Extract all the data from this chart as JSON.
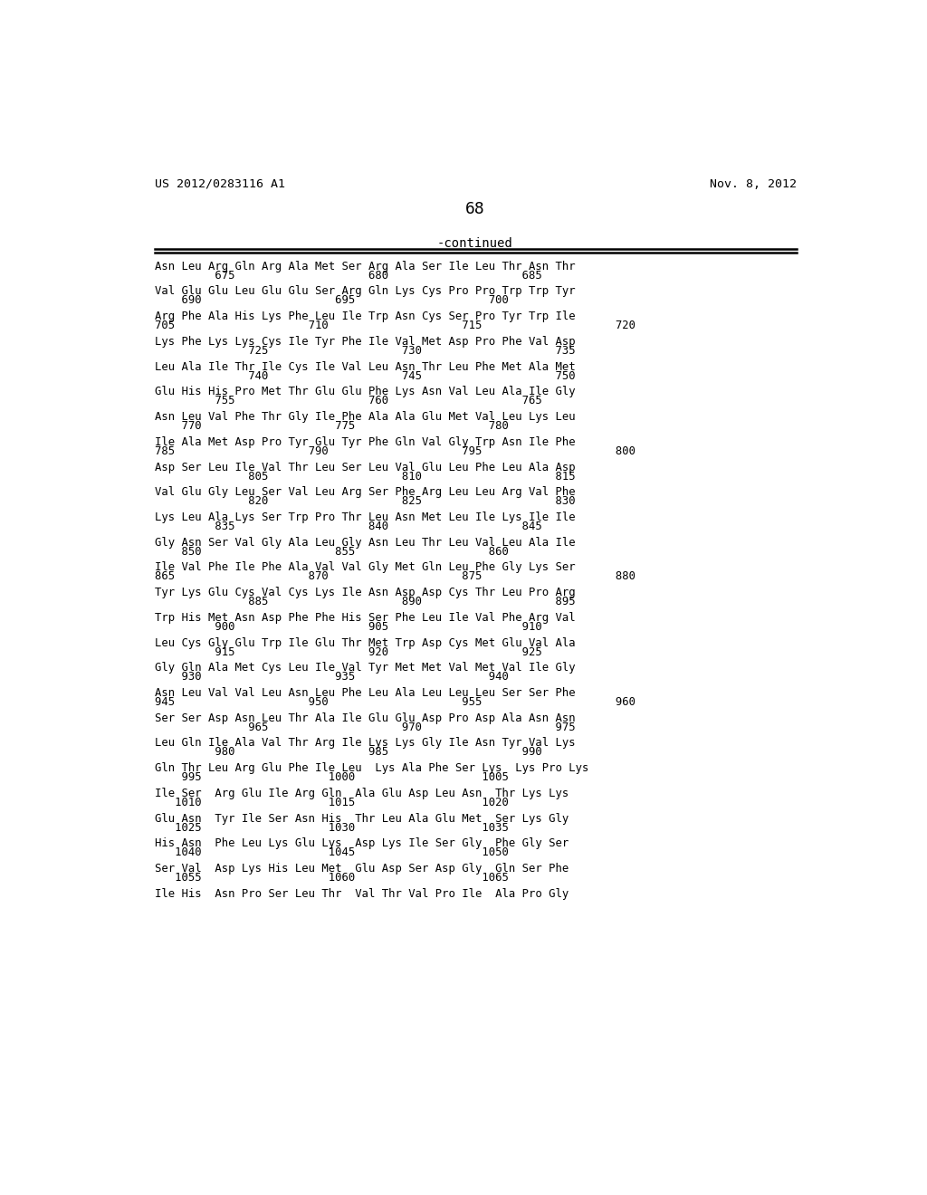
{
  "header_left": "US 2012/0283116 A1",
  "header_right": "Nov. 8, 2012",
  "page_number": "68",
  "continued_label": "-continued",
  "background_color": "#ffffff",
  "text_color": "#000000",
  "seq_lines": [
    [
      "Asn Leu Arg Gln Arg Ala Met Ser Arg Ala Ser Ile Leu Thr Asn Thr",
      "         675                    680                    685"
    ],
    [
      "Val Glu Glu Leu Glu Glu Ser Arg Gln Lys Cys Pro Pro Trp Trp Tyr",
      "    690                    695                    700"
    ],
    [
      "Arg Phe Ala His Lys Phe Leu Ile Trp Asn Cys Ser Pro Tyr Trp Ile",
      "705                    710                    715                    720"
    ],
    [
      "Lys Phe Lys Lys Cys Ile Tyr Phe Ile Val Met Asp Pro Phe Val Asp",
      "              725                    730                    735"
    ],
    [
      "Leu Ala Ile Thr Ile Cys Ile Val Leu Asn Thr Leu Phe Met Ala Met",
      "              740                    745                    750"
    ],
    [
      "Glu His His Pro Met Thr Glu Glu Phe Lys Asn Val Leu Ala Ile Gly",
      "         755                    760                    765"
    ],
    [
      "Asn Leu Val Phe Thr Gly Ile Phe Ala Ala Glu Met Val Leu Lys Leu",
      "    770                    775                    780"
    ],
    [
      "Ile Ala Met Asp Pro Tyr Glu Tyr Phe Gln Val Gly Trp Asn Ile Phe",
      "785                    790                    795                    800"
    ],
    [
      "Asp Ser Leu Ile Val Thr Leu Ser Leu Val Glu Leu Phe Leu Ala Asp",
      "              805                    810                    815"
    ],
    [
      "Val Glu Gly Leu Ser Val Leu Arg Ser Phe Arg Leu Leu Arg Val Phe",
      "              820                    825                    830"
    ],
    [
      "Lys Leu Ala Lys Ser Trp Pro Thr Leu Asn Met Leu Ile Lys Ile Ile",
      "         835                    840                    845"
    ],
    [
      "Gly Asn Ser Val Gly Ala Leu Gly Asn Leu Thr Leu Val Leu Ala Ile",
      "    850                    855                    860"
    ],
    [
      "Ile Val Phe Ile Phe Ala Val Val Gly Met Gln Leu Phe Gly Lys Ser",
      "865                    870                    875                    880"
    ],
    [
      "Tyr Lys Glu Cys Val Cys Lys Ile Asn Asp Asp Cys Thr Leu Pro Arg",
      "              885                    890                    895"
    ],
    [
      "Trp His Met Asn Asp Phe Phe His Ser Phe Leu Ile Val Phe Arg Val",
      "         900                    905                    910"
    ],
    [
      "Leu Cys Gly Glu Trp Ile Glu Thr Met Trp Asp Cys Met Glu Val Ala",
      "         915                    920                    925"
    ],
    [
      "Gly Gln Ala Met Cys Leu Ile Val Tyr Met Met Val Met Val Ile Gly",
      "    930                    935                    940"
    ],
    [
      "Asn Leu Val Val Leu Asn Leu Phe Leu Ala Leu Leu Leu Ser Ser Phe",
      "945                    950                    955                    960"
    ],
    [
      "Ser Ser Asp Asn Leu Thr Ala Ile Glu Glu Asp Pro Asp Ala Asn Asn",
      "              965                    970                    975"
    ],
    [
      "Leu Gln Ile Ala Val Thr Arg Ile Lys Lys Gly Ile Asn Tyr Val Lys",
      "         980                    985                    990"
    ],
    [
      "Gln Thr Leu Arg Glu Phe Ile Leu  Lys Ala Phe Ser Lys  Lys Pro Lys",
      "    995                   1000                   1005"
    ],
    [
      "Ile Ser  Arg Glu Ile Arg Gln  Ala Glu Asp Leu Asn  Thr Lys Lys",
      "   1010                   1015                   1020"
    ],
    [
      "Glu Asn  Tyr Ile Ser Asn His  Thr Leu Ala Glu Met  Ser Lys Gly",
      "   1025                   1030                   1035"
    ],
    [
      "His Asn  Phe Leu Lys Glu Lys  Asp Lys Ile Ser Gly  Phe Gly Ser",
      "   1040                   1045                   1050"
    ],
    [
      "Ser Val  Asp Lys His Leu Met  Glu Asp Ser Asp Gly  Gln Ser Phe",
      "   1055                   1060                   1065"
    ],
    [
      "Ile His  Asn Pro Ser Leu Thr  Val Thr Val Pro Ile  Ala Pro Gly",
      ""
    ]
  ]
}
